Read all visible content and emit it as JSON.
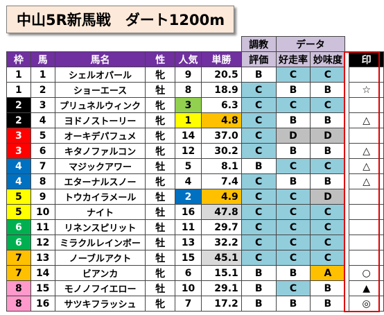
{
  "title": "中山5R新馬戦　ダート1200m",
  "headers": {
    "waku": "枠",
    "uma": "馬",
    "name": "馬名",
    "sex": "性",
    "pop": "人気",
    "odds": "単勝",
    "training_top": "調教",
    "training_bottom": "評価",
    "data_group": "データ",
    "winrate": "好走率",
    "taste": "妙味度",
    "mark": "印"
  },
  "colors": {
    "waku": {
      "1": {
        "bg": "#ffffff",
        "fg": "#000000"
      },
      "2": {
        "bg": "#000000",
        "fg": "#ffffff"
      },
      "3": {
        "bg": "#ff0000",
        "fg": "#ffffff"
      },
      "4": {
        "bg": "#0070c0",
        "fg": "#ffffff"
      },
      "5": {
        "bg": "#ffff00",
        "fg": "#000000"
      },
      "6": {
        "bg": "#00b050",
        "fg": "#ffffff"
      },
      "7": {
        "bg": "#ffc000",
        "fg": "#000000"
      },
      "8": {
        "bg": "#ff99cc",
        "fg": "#000000"
      }
    }
  },
  "rows": [
    {
      "waku": "1",
      "uma": "1",
      "name": "シェルオパール",
      "sex": "牝",
      "pop": "9",
      "odds": "20.5",
      "training": "B",
      "winrate": "C",
      "taste": "C",
      "mark": ""
    },
    {
      "waku": "1",
      "uma": "2",
      "name": "ショーエース",
      "sex": "牡",
      "pop": "8",
      "odds": "18.9",
      "training": "C",
      "winrate": "B",
      "taste": "B",
      "mark": "☆"
    },
    {
      "waku": "2",
      "uma": "3",
      "name": "プリュネルウィンク",
      "sex": "牝",
      "pop": "3",
      "odds": "6.3",
      "training": "C",
      "winrate": "C",
      "taste": "C",
      "mark": ""
    },
    {
      "waku": "2",
      "uma": "4",
      "name": "ヨドノストーリー",
      "sex": "牝",
      "pop": "1",
      "odds": "4.8",
      "training": "C",
      "winrate": "B",
      "taste": "B",
      "mark": "△"
    },
    {
      "waku": "3",
      "uma": "5",
      "name": "オーキデパフュメ",
      "sex": "牝",
      "pop": "14",
      "odds": "37.0",
      "training": "C",
      "winrate": "D",
      "taste": "D",
      "mark": ""
    },
    {
      "waku": "3",
      "uma": "6",
      "name": "キタノファルコン",
      "sex": "牝",
      "pop": "12",
      "odds": "30.2",
      "training": "C",
      "winrate": "B",
      "taste": "B",
      "mark": "△"
    },
    {
      "waku": "4",
      "uma": "7",
      "name": "マジックアワー",
      "sex": "牡",
      "pop": "5",
      "odds": "8.1",
      "training": "B",
      "winrate": "C",
      "taste": "C",
      "mark": "△"
    },
    {
      "waku": "4",
      "uma": "8",
      "name": "エターナルスノー",
      "sex": "牝",
      "pop": "4",
      "odds": "7.4",
      "training": "C",
      "winrate": "B",
      "taste": "B",
      "mark": "△"
    },
    {
      "waku": "5",
      "uma": "9",
      "name": "トウカイラメール",
      "sex": "牡",
      "pop": "2",
      "odds": "4.9",
      "training": "C",
      "winrate": "C",
      "taste": "D",
      "mark": ""
    },
    {
      "waku": "5",
      "uma": "10",
      "name": "ナイト",
      "sex": "牡",
      "pop": "16",
      "odds": "47.8",
      "training": "C",
      "winrate": "C",
      "taste": "C",
      "mark": ""
    },
    {
      "waku": "6",
      "uma": "11",
      "name": "リネンスピリット",
      "sex": "牡",
      "pop": "11",
      "odds": "29.7",
      "training": "C",
      "winrate": "C",
      "taste": "C",
      "mark": ""
    },
    {
      "waku": "6",
      "uma": "12",
      "name": "ミラクルレインボー",
      "sex": "牡",
      "pop": "13",
      "odds": "32.2",
      "training": "C",
      "winrate": "C",
      "taste": "C",
      "mark": ""
    },
    {
      "waku": "7",
      "uma": "13",
      "name": "ノーブルアクト",
      "sex": "牡",
      "pop": "15",
      "odds": "45.1",
      "training": "C",
      "winrate": "C",
      "taste": "C",
      "mark": ""
    },
    {
      "waku": "7",
      "uma": "14",
      "name": "ビアンカ",
      "sex": "牝",
      "pop": "6",
      "odds": "15.1",
      "training": "B",
      "winrate": "B",
      "taste": "A",
      "mark": "○"
    },
    {
      "waku": "8",
      "uma": "15",
      "name": "モノノフイエロー",
      "sex": "牡",
      "pop": "10",
      "odds": "29.1",
      "training": "B",
      "winrate": "C",
      "taste": "B",
      "mark": "▲"
    },
    {
      "waku": "8",
      "uma": "16",
      "name": "サツキフラッシュ",
      "sex": "牝",
      "pop": "7",
      "odds": "17.2",
      "training": "B",
      "winrate": "B",
      "taste": "B",
      "mark": "◎"
    }
  ]
}
